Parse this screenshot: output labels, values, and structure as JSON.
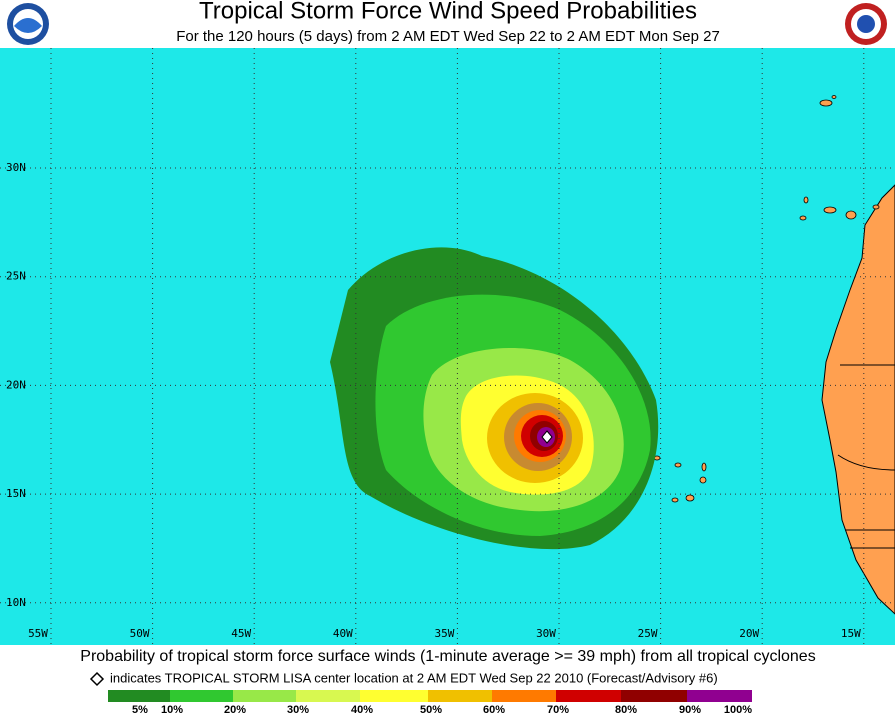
{
  "header": {
    "title": "Tropical Storm Force Wind Speed Probabilities",
    "subtitle": "For the 120 hours (5 days) from 2 AM EDT Wed Sep 22 to 2 AM EDT Mon Sep 27"
  },
  "map": {
    "lat_labels": [
      "30N",
      "25N",
      "20N",
      "15N",
      "10N"
    ],
    "lon_labels": [
      "55W",
      "50W",
      "45W",
      "40W",
      "35W",
      "30W",
      "25W",
      "20W",
      "15W"
    ]
  },
  "footer": {
    "caption": "Probability of tropical storm force surface winds (1-minute average >= 39 mph) from all tropical cyclones",
    "indicator": "indicates TROPICAL STORM LISA center location at 2 AM EDT Wed Sep 22 2010 (Forecast/Advisory #6)",
    "legend": [
      "5%",
      "10%",
      "20%",
      "30%",
      "40%",
      "50%",
      "60%",
      "70%",
      "80%",
      "90%",
      "100%"
    ]
  }
}
